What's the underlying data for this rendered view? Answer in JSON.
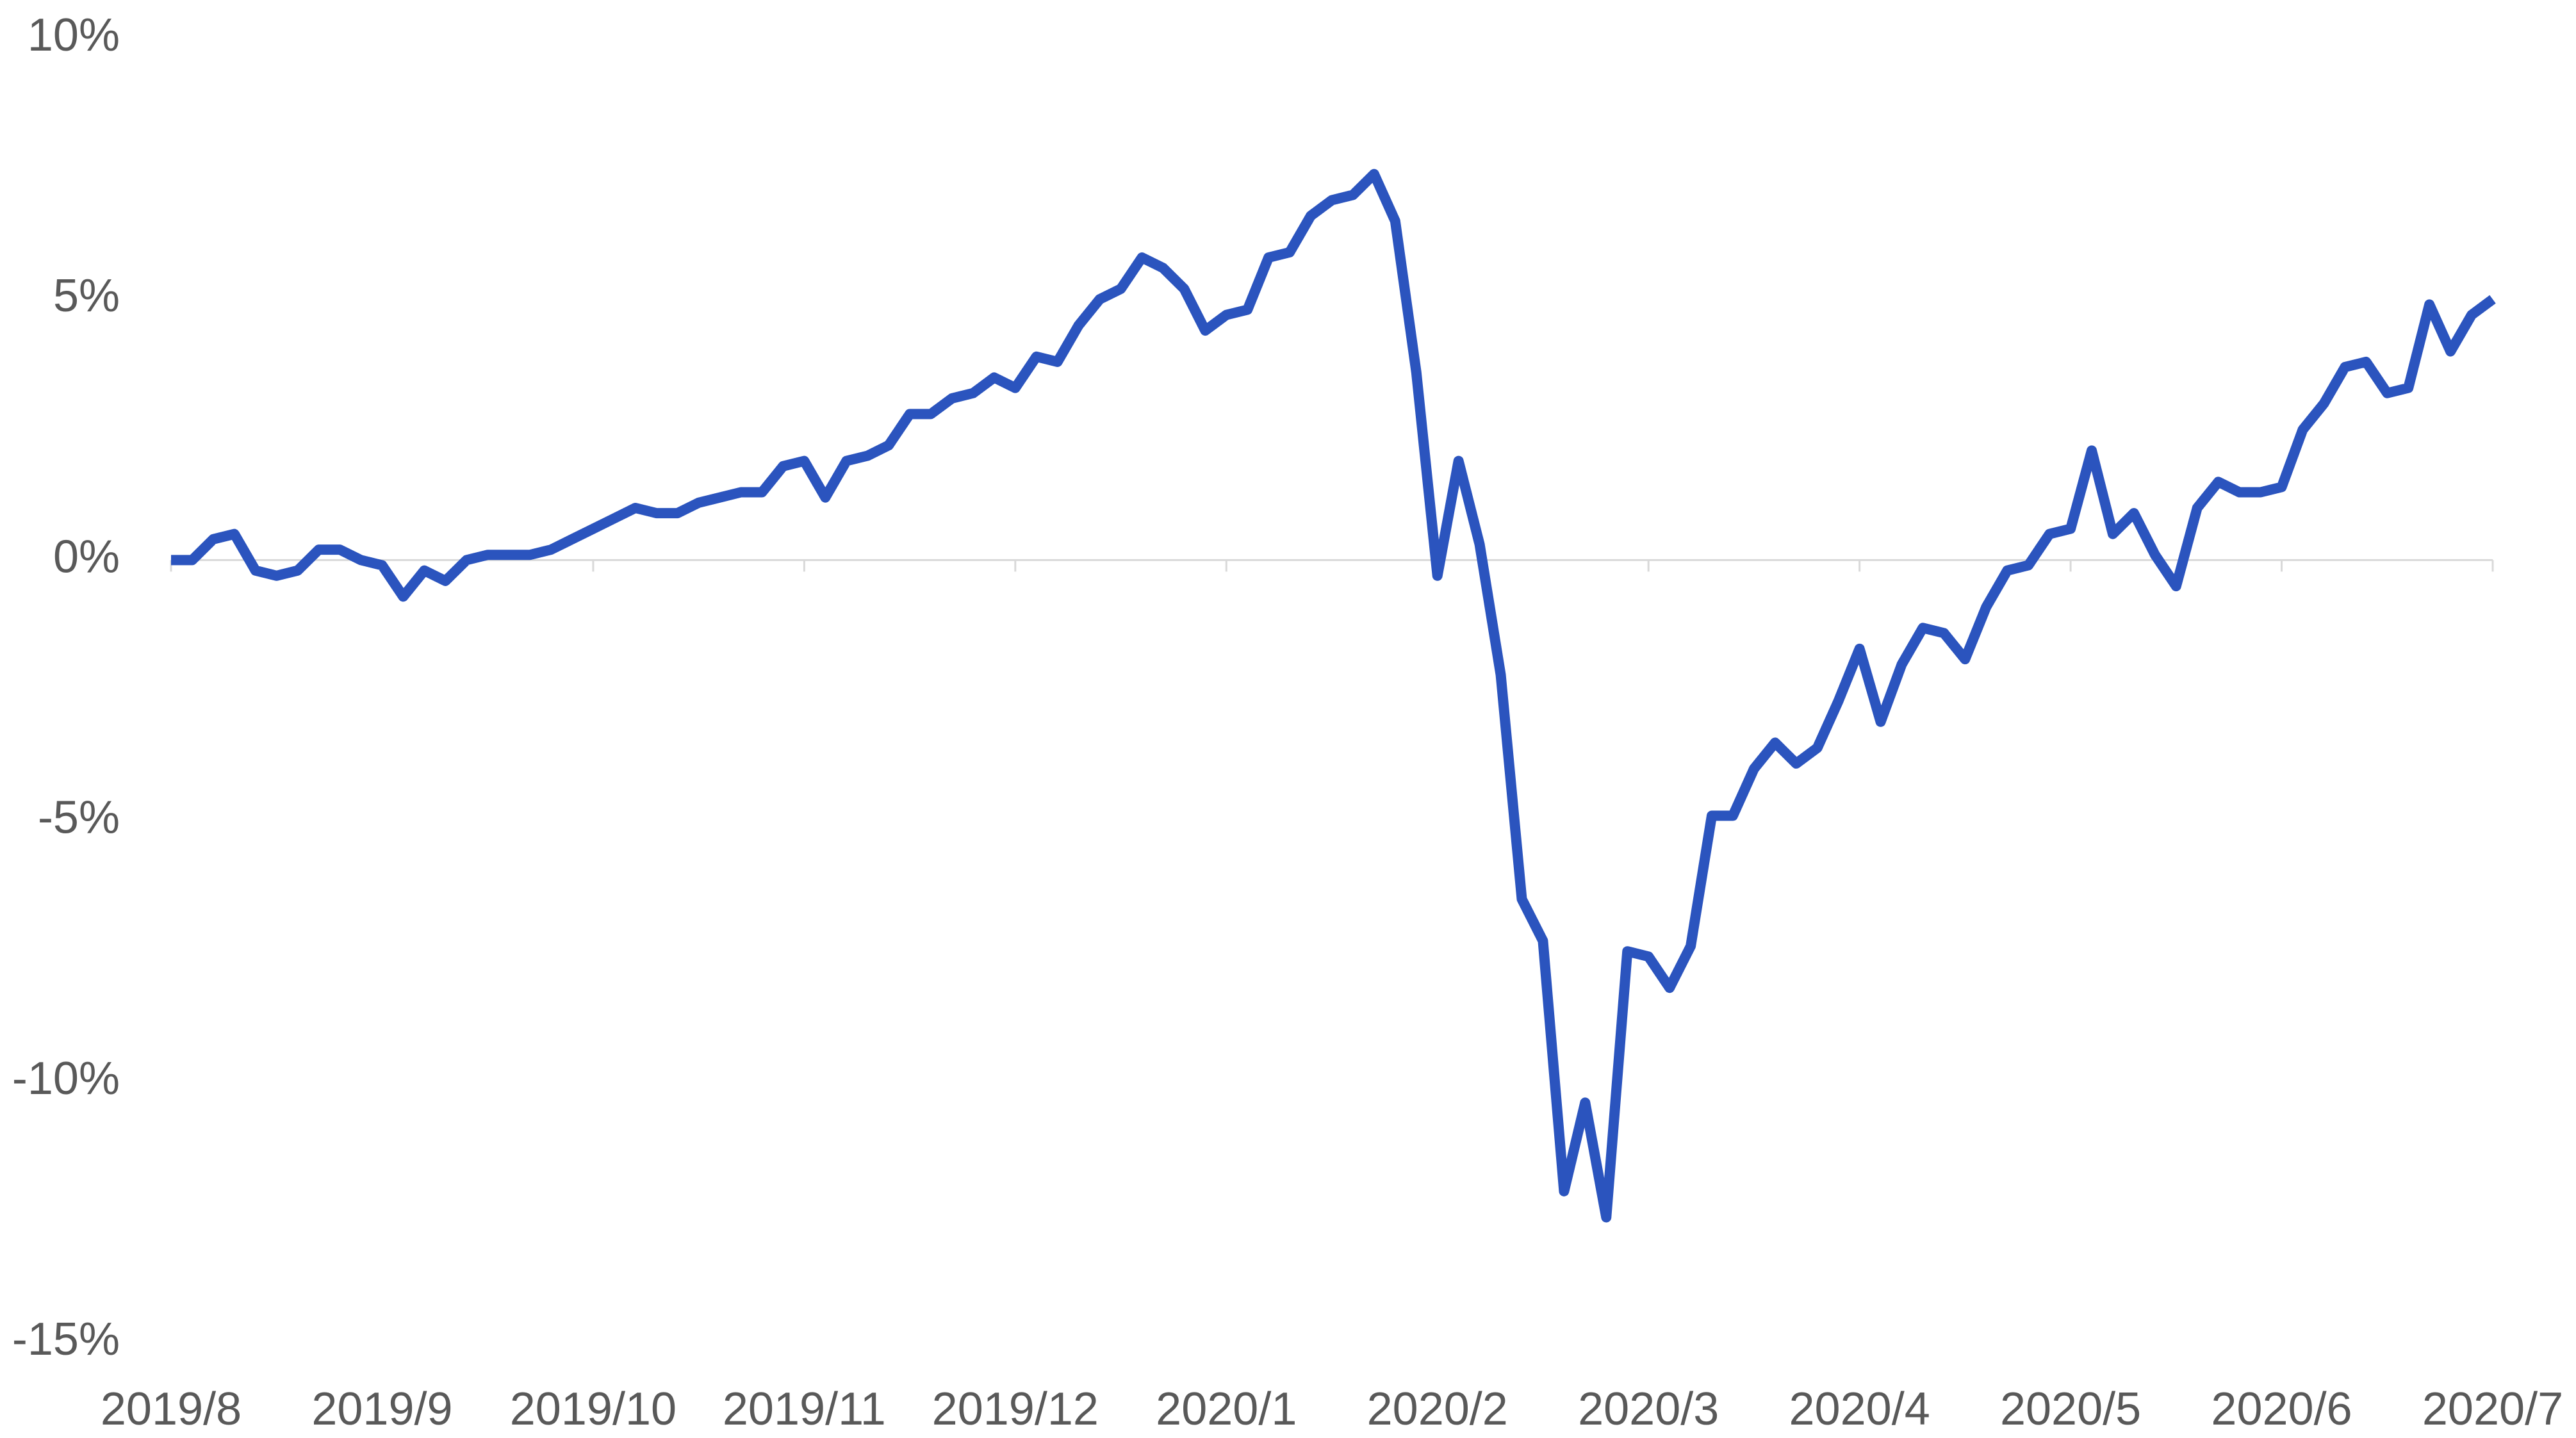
{
  "chart_data": {
    "type": "line",
    "categories": [
      "2019/8",
      null,
      null,
      null,
      null,
      null,
      null,
      null,
      null,
      null,
      "2019/9",
      null,
      null,
      null,
      null,
      null,
      null,
      null,
      null,
      null,
      "2019/10",
      null,
      null,
      null,
      null,
      null,
      null,
      null,
      null,
      null,
      "2019/11",
      null,
      null,
      null,
      null,
      null,
      null,
      null,
      null,
      null,
      "2019/12",
      null,
      null,
      null,
      null,
      null,
      null,
      null,
      null,
      null,
      "2020/1",
      null,
      null,
      null,
      null,
      null,
      null,
      null,
      null,
      null,
      "2020/2",
      null,
      null,
      null,
      null,
      null,
      null,
      null,
      null,
      null,
      "2020/3",
      null,
      null,
      null,
      null,
      null,
      null,
      null,
      null,
      null,
      "2020/4",
      null,
      null,
      null,
      null,
      null,
      null,
      null,
      null,
      null,
      "2020/5",
      null,
      null,
      null,
      null,
      null,
      null,
      null,
      null,
      null,
      "2020/6",
      null,
      null,
      null,
      null,
      null,
      null,
      null,
      null,
      null,
      "2020/7"
    ],
    "series": [
      {
        "color": "#2b54be",
        "values": [
          0,
          0,
          0.4,
          0.5,
          -0.2,
          -0.3,
          -0.2,
          0.2,
          0.2,
          0,
          -0.1,
          -0.7,
          -0.2,
          -0.4,
          0,
          0.1,
          0.1,
          0.1,
          0.2,
          0.4,
          0.6,
          0.8,
          1.0,
          0.9,
          0.9,
          1.1,
          1.2,
          1.3,
          1.3,
          1.8,
          1.9,
          1.2,
          1.9,
          2.0,
          2.2,
          2.8,
          2.8,
          3.1,
          3.2,
          3.5,
          3.3,
          3.9,
          3.8,
          4.5,
          5.0,
          5.2,
          5.8,
          5.6,
          5.2,
          4.4,
          4.7,
          4.8,
          5.8,
          5.9,
          6.6,
          6.9,
          7.0,
          7.4,
          6.5,
          3.6,
          -0.3,
          1.9,
          0.3,
          -2.2,
          -6.5,
          -7.3,
          -12.1,
          -10.4,
          -12.6,
          -7.5,
          -7.6,
          -8.2,
          -7.4,
          -4.9,
          -4.9,
          -4.0,
          -3.5,
          -3.9,
          -3.6,
          -2.7,
          -1.7,
          -3.1,
          -2.0,
          -1.3,
          -1.4,
          -1.9,
          -0.9,
          -0.2,
          -0.1,
          0.5,
          0.6,
          2.1,
          0.5,
          0.9,
          0.1,
          -0.5,
          1.0,
          1.5,
          1.3,
          1.3,
          1.4,
          2.5,
          3.0,
          3.7,
          3.8,
          3.2,
          3.3,
          4.9,
          4.0,
          4.7,
          5.0
        ]
      }
    ],
    "ylim": [
      -15,
      10
    ],
    "yticks": [
      {
        "value": -15,
        "label": "-15%"
      },
      {
        "value": -10,
        "label": "-10%"
      },
      {
        "value": -5,
        "label": "-5%"
      },
      {
        "value": 0,
        "label": "0%"
      },
      {
        "value": 5,
        "label": "5%"
      },
      {
        "value": 10,
        "label": "10%"
      }
    ],
    "grid": false
  }
}
